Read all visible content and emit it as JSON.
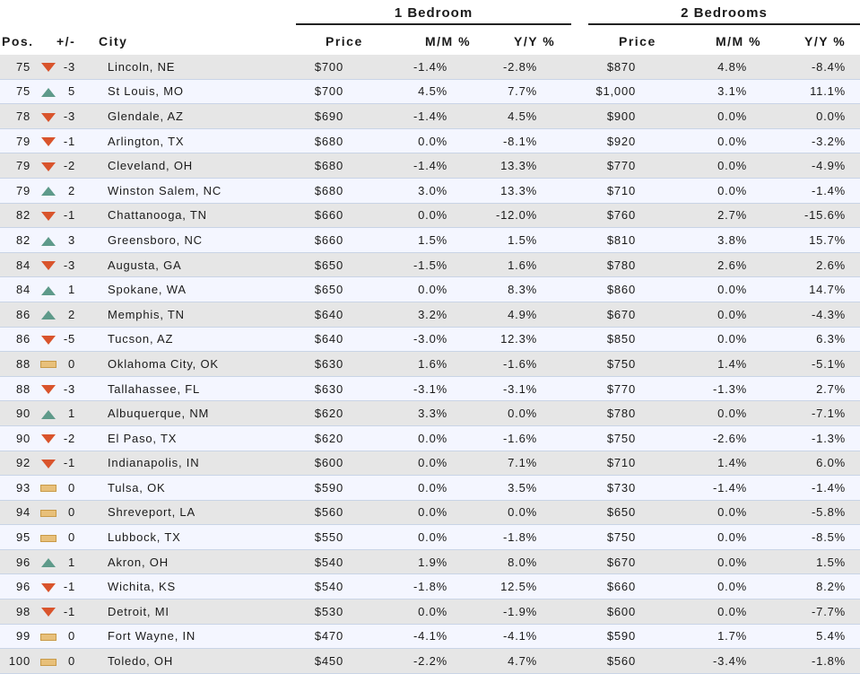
{
  "groups": {
    "one_bedroom": "1 Bedroom",
    "two_bedrooms": "2 Bedrooms"
  },
  "headers": {
    "pos": "Pos.",
    "change": "+/-",
    "city": "City",
    "price1": "Price",
    "mm1": "M/M %",
    "yy1": "Y/Y %",
    "price2": "Price",
    "mm2": "M/M %",
    "yy2": "Y/Y %"
  },
  "colors": {
    "down": "#d9542c",
    "up": "#5e9a8a",
    "flat": "#e8c07a",
    "row_odd": "#e6e6e6",
    "row_even": "#f4f6ff"
  },
  "rows": [
    {
      "pos": "75",
      "trend": "down",
      "change": "-3",
      "city": "Lincoln, NE",
      "p1": "$700",
      "mm1": "-1.4%",
      "yy1": "-2.8%",
      "p2": "$870",
      "mm2": "4.8%",
      "yy2": "-8.4%"
    },
    {
      "pos": "75",
      "trend": "up",
      "change": "5",
      "city": "St Louis, MO",
      "p1": "$700",
      "mm1": "4.5%",
      "yy1": "7.7%",
      "p2": "$1,000",
      "mm2": "3.1%",
      "yy2": "11.1%"
    },
    {
      "pos": "78",
      "trend": "down",
      "change": "-3",
      "city": "Glendale, AZ",
      "p1": "$690",
      "mm1": "-1.4%",
      "yy1": "4.5%",
      "p2": "$900",
      "mm2": "0.0%",
      "yy2": "0.0%"
    },
    {
      "pos": "79",
      "trend": "down",
      "change": "-1",
      "city": "Arlington, TX",
      "p1": "$680",
      "mm1": "0.0%",
      "yy1": "-8.1%",
      "p2": "$920",
      "mm2": "0.0%",
      "yy2": "-3.2%"
    },
    {
      "pos": "79",
      "trend": "down",
      "change": "-2",
      "city": "Cleveland, OH",
      "p1": "$680",
      "mm1": "-1.4%",
      "yy1": "13.3%",
      "p2": "$770",
      "mm2": "0.0%",
      "yy2": "-4.9%"
    },
    {
      "pos": "79",
      "trend": "up",
      "change": "2",
      "city": "Winston Salem, NC",
      "p1": "$680",
      "mm1": "3.0%",
      "yy1": "13.3%",
      "p2": "$710",
      "mm2": "0.0%",
      "yy2": "-1.4%"
    },
    {
      "pos": "82",
      "trend": "down",
      "change": "-1",
      "city": "Chattanooga, TN",
      "p1": "$660",
      "mm1": "0.0%",
      "yy1": "-12.0%",
      "p2": "$760",
      "mm2": "2.7%",
      "yy2": "-15.6%"
    },
    {
      "pos": "82",
      "trend": "up",
      "change": "3",
      "city": "Greensboro, NC",
      "p1": "$660",
      "mm1": "1.5%",
      "yy1": "1.5%",
      "p2": "$810",
      "mm2": "3.8%",
      "yy2": "15.7%"
    },
    {
      "pos": "84",
      "trend": "down",
      "change": "-3",
      "city": "Augusta, GA",
      "p1": "$650",
      "mm1": "-1.5%",
      "yy1": "1.6%",
      "p2": "$780",
      "mm2": "2.6%",
      "yy2": "2.6%"
    },
    {
      "pos": "84",
      "trend": "up",
      "change": "1",
      "city": "Spokane, WA",
      "p1": "$650",
      "mm1": "0.0%",
      "yy1": "8.3%",
      "p2": "$860",
      "mm2": "0.0%",
      "yy2": "14.7%"
    },
    {
      "pos": "86",
      "trend": "up",
      "change": "2",
      "city": "Memphis, TN",
      "p1": "$640",
      "mm1": "3.2%",
      "yy1": "4.9%",
      "p2": "$670",
      "mm2": "0.0%",
      "yy2": "-4.3%"
    },
    {
      "pos": "86",
      "trend": "down",
      "change": "-5",
      "city": "Tucson, AZ",
      "p1": "$640",
      "mm1": "-3.0%",
      "yy1": "12.3%",
      "p2": "$850",
      "mm2": "0.0%",
      "yy2": "6.3%"
    },
    {
      "pos": "88",
      "trend": "flat",
      "change": "0",
      "city": "Oklahoma City, OK",
      "p1": "$630",
      "mm1": "1.6%",
      "yy1": "-1.6%",
      "p2": "$750",
      "mm2": "1.4%",
      "yy2": "-5.1%"
    },
    {
      "pos": "88",
      "trend": "down",
      "change": "-3",
      "city": "Tallahassee, FL",
      "p1": "$630",
      "mm1": "-3.1%",
      "yy1": "-3.1%",
      "p2": "$770",
      "mm2": "-1.3%",
      "yy2": "2.7%"
    },
    {
      "pos": "90",
      "trend": "up",
      "change": "1",
      "city": "Albuquerque, NM",
      "p1": "$620",
      "mm1": "3.3%",
      "yy1": "0.0%",
      "p2": "$780",
      "mm2": "0.0%",
      "yy2": "-7.1%"
    },
    {
      "pos": "90",
      "trend": "down",
      "change": "-2",
      "city": "El Paso, TX",
      "p1": "$620",
      "mm1": "0.0%",
      "yy1": "-1.6%",
      "p2": "$750",
      "mm2": "-2.6%",
      "yy2": "-1.3%"
    },
    {
      "pos": "92",
      "trend": "down",
      "change": "-1",
      "city": "Indianapolis, IN",
      "p1": "$600",
      "mm1": "0.0%",
      "yy1": "7.1%",
      "p2": "$710",
      "mm2": "1.4%",
      "yy2": "6.0%"
    },
    {
      "pos": "93",
      "trend": "flat",
      "change": "0",
      "city": "Tulsa, OK",
      "p1": "$590",
      "mm1": "0.0%",
      "yy1": "3.5%",
      "p2": "$730",
      "mm2": "-1.4%",
      "yy2": "-1.4%"
    },
    {
      "pos": "94",
      "trend": "flat",
      "change": "0",
      "city": "Shreveport, LA",
      "p1": "$560",
      "mm1": "0.0%",
      "yy1": "0.0%",
      "p2": "$650",
      "mm2": "0.0%",
      "yy2": "-5.8%"
    },
    {
      "pos": "95",
      "trend": "flat",
      "change": "0",
      "city": "Lubbock, TX",
      "p1": "$550",
      "mm1": "0.0%",
      "yy1": "-1.8%",
      "p2": "$750",
      "mm2": "0.0%",
      "yy2": "-8.5%"
    },
    {
      "pos": "96",
      "trend": "up",
      "change": "1",
      "city": "Akron, OH",
      "p1": "$540",
      "mm1": "1.9%",
      "yy1": "8.0%",
      "p2": "$670",
      "mm2": "0.0%",
      "yy2": "1.5%"
    },
    {
      "pos": "96",
      "trend": "down",
      "change": "-1",
      "city": "Wichita, KS",
      "p1": "$540",
      "mm1": "-1.8%",
      "yy1": "12.5%",
      "p2": "$660",
      "mm2": "0.0%",
      "yy2": "8.2%"
    },
    {
      "pos": "98",
      "trend": "down",
      "change": "-1",
      "city": "Detroit, MI",
      "p1": "$530",
      "mm1": "0.0%",
      "yy1": "-1.9%",
      "p2": "$600",
      "mm2": "0.0%",
      "yy2": "-7.7%"
    },
    {
      "pos": "99",
      "trend": "flat",
      "change": "0",
      "city": "Fort Wayne, IN",
      "p1": "$470",
      "mm1": "-4.1%",
      "yy1": "-4.1%",
      "p2": "$590",
      "mm2": "1.7%",
      "yy2": "5.4%"
    },
    {
      "pos": "100",
      "trend": "flat",
      "change": "0",
      "city": "Toledo, OH",
      "p1": "$450",
      "mm1": "-2.2%",
      "yy1": "4.7%",
      "p2": "$560",
      "mm2": "-3.4%",
      "yy2": "-1.8%"
    }
  ]
}
